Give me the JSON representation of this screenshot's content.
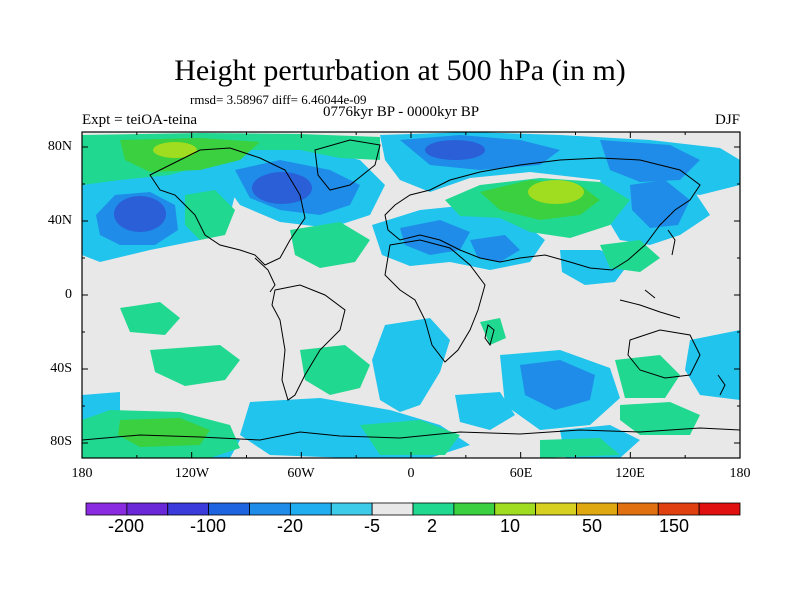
{
  "title": "Height perturbation at 500 hPa (in m)",
  "stats": "rmsd= 3.58967 diff= 6.46044e-09",
  "experiment": "Expt = teiOA-teina",
  "period": "0776kyr BP - 0000kyr BP",
  "season": "DJF",
  "map": {
    "lat_labels": [
      "80N",
      "40N",
      "0",
      "40S",
      "80S"
    ],
    "lon_labels": [
      "180",
      "120W",
      "60W",
      "0",
      "60E",
      "120E",
      "180"
    ],
    "background_color": "#e8e8e8"
  },
  "colorbar": {
    "labels": [
      "-200",
      "-100",
      "-20",
      "-5",
      "2",
      "10",
      "50",
      "150"
    ],
    "colors": [
      "#8a2be2",
      "#6a28d8",
      "#3b3bdc",
      "#1e64e0",
      "#1e8ce8",
      "#21aef0",
      "#3ccbe8",
      "#e8e8e8",
      "#20d890",
      "#3ad040",
      "#a0dc20",
      "#d8d020",
      "#e0a810",
      "#e07010",
      "#e04010",
      "#e01010"
    ]
  }
}
